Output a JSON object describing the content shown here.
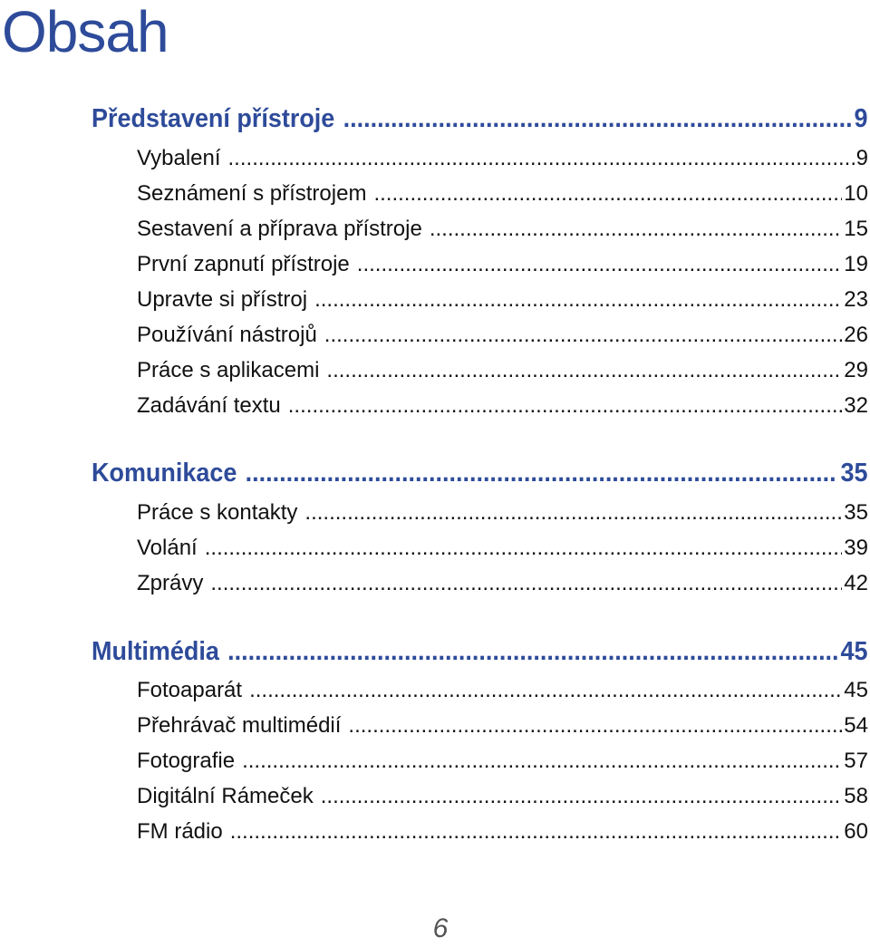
{
  "title": "Obsah",
  "sections": [
    {
      "heading": "Představení přístroje",
      "page": "9",
      "entries": [
        {
          "label": "Vybalení",
          "page": "9"
        },
        {
          "label": "Seznámení s přístrojem",
          "page": "10"
        },
        {
          "label": "Sestavení a příprava přístroje",
          "page": "15"
        },
        {
          "label": "První zapnutí přístroje",
          "page": "19"
        },
        {
          "label": "Upravte si přístroj",
          "page": "23"
        },
        {
          "label": "Používání nástrojů",
          "page": "26"
        },
        {
          "label": "Práce s aplikacemi",
          "page": "29"
        },
        {
          "label": "Zadávání textu",
          "page": "32"
        }
      ]
    },
    {
      "heading": "Komunikace",
      "page": "35",
      "entries": [
        {
          "label": "Práce s kontakty",
          "page": "35"
        },
        {
          "label": "Volání",
          "page": "39"
        },
        {
          "label": "Zprávy",
          "page": "42"
        }
      ]
    },
    {
      "heading": "Multimédia",
      "page": "45",
      "entries": [
        {
          "label": "Fotoaparát",
          "page": "45"
        },
        {
          "label": "Přehrávač multimédií",
          "page": "54"
        },
        {
          "label": "Fotografie",
          "page": "57"
        },
        {
          "label": "Digitální Rámeček",
          "page": "58"
        },
        {
          "label": "FM rádio",
          "page": "60"
        }
      ]
    }
  ],
  "footer": {
    "page_number": "6"
  }
}
